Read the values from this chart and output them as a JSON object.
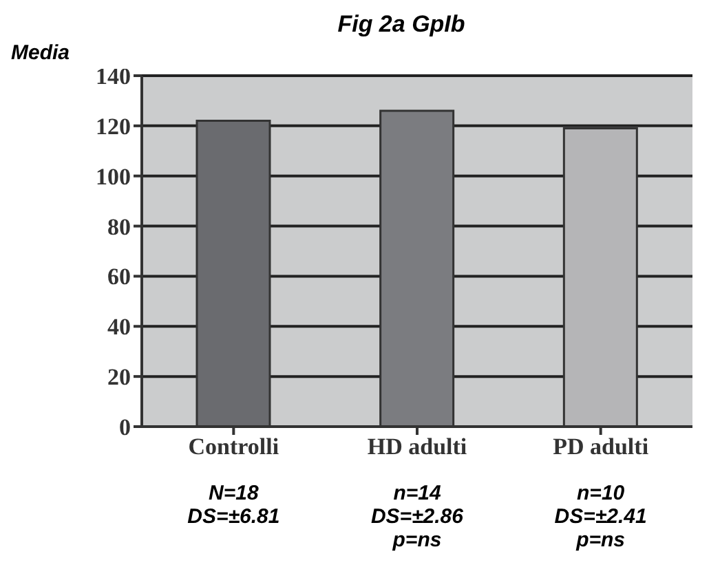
{
  "chart_data": {
    "type": "bar",
    "title": "Fig 2a GpIb",
    "ylabel": "Media",
    "categories": [
      "Controlli",
      "HD adulti",
      "PD adulti"
    ],
    "values": [
      122,
      126,
      119
    ],
    "colors": [
      "#6a6b6f",
      "#7b7c80",
      "#b5b5b7"
    ],
    "ylim": [
      0,
      140
    ],
    "yticks": [
      0,
      20,
      40,
      60,
      80,
      100,
      120,
      140
    ],
    "grid": "y",
    "legend": false,
    "annotations": [
      "N=18\nDS=±6.81",
      "n=14\nDS=±2.86\np=ns",
      "n=10\nDS=±2.41\np=ns"
    ]
  }
}
